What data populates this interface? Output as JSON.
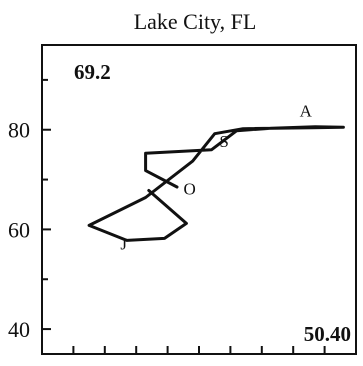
{
  "chart_data": {
    "type": "line",
    "title": "Lake City, FL",
    "annotations": {
      "top_left": "69.2",
      "bottom_right": "50.40"
    },
    "y_ticks": [
      40,
      60,
      80
    ],
    "y_tick_labels": [
      "40",
      "60",
      "80"
    ],
    "ylim": [
      35,
      97
    ],
    "xlim": [
      0,
      10
    ],
    "x_minor_ticks": [
      1,
      2,
      3,
      4,
      5,
      6,
      7,
      8,
      9
    ],
    "grid": false,
    "series": [
      {
        "points": [
          {
            "x": 4.3,
            "y": 68.5
          },
          {
            "x": 3.3,
            "y": 71.8
          },
          {
            "x": 3.3,
            "y": 75.3
          },
          {
            "x": 5.4,
            "y": 76.0
          },
          {
            "x": 6.2,
            "y": 79.8
          },
          {
            "x": 7.3,
            "y": 80.3
          },
          {
            "x": 8.7,
            "y": 80.6
          },
          {
            "x": 9.6,
            "y": 80.5
          },
          {
            "x": 8.6,
            "y": 80.4
          },
          {
            "x": 6.4,
            "y": 80.2
          },
          {
            "x": 5.5,
            "y": 79.2
          },
          {
            "x": 4.8,
            "y": 73.7
          },
          {
            "x": 3.3,
            "y": 66.4
          },
          {
            "x": 1.5,
            "y": 60.8
          },
          {
            "x": 2.7,
            "y": 57.8
          },
          {
            "x": 3.9,
            "y": 58.2
          },
          {
            "x": 4.6,
            "y": 61.2
          },
          {
            "x": 3.4,
            "y": 67.8
          }
        ],
        "labels": [
          {
            "text": "J",
            "x": 2.6,
            "y": 56.0
          },
          {
            "text": "O",
            "x": 4.7,
            "y": 67.0
          },
          {
            "text": "S",
            "x": 5.8,
            "y": 76.5
          },
          {
            "text": "A",
            "x": 8.4,
            "y": 82.7
          }
        ]
      }
    ]
  }
}
